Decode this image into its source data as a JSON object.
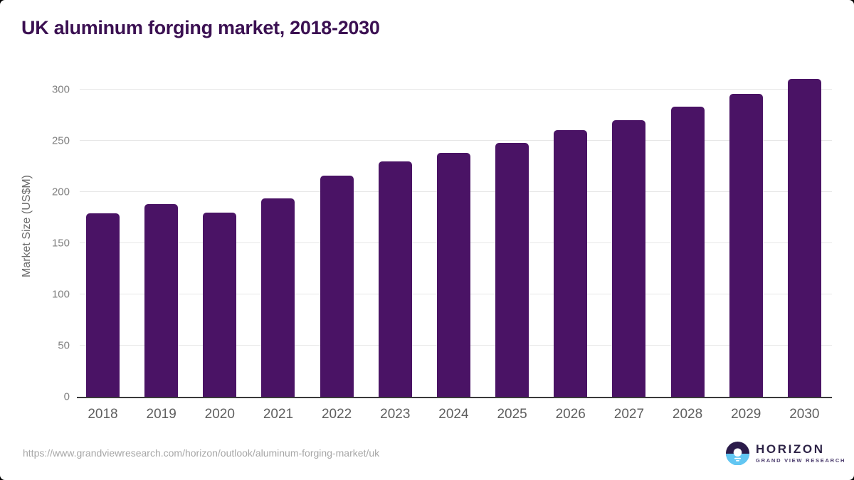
{
  "chart_data": {
    "type": "bar",
    "title": "UK aluminum forging market, 2018-2030",
    "categories": [
      "2018",
      "2019",
      "2020",
      "2021",
      "2022",
      "2023",
      "2024",
      "2025",
      "2026",
      "2027",
      "2028",
      "2029",
      "2030"
    ],
    "values": [
      179,
      188,
      180,
      194,
      216,
      230,
      238,
      248,
      260,
      270,
      283,
      296,
      310
    ],
    "xlabel": "",
    "ylabel": "Market Size (US$M)",
    "ylim": [
      0,
      311
    ],
    "yticks": [
      0,
      50,
      100,
      150,
      200,
      250,
      300
    ],
    "grid": true,
    "legend": false,
    "bar_color": "#4a1365",
    "grid_color": "#e7e7e7",
    "axis_line_color": "#3a3a3a"
  },
  "footer": {
    "source_url": "https://www.grandviewresearch.com/horizon/outlook/aluminum-forging-market/uk",
    "logo": {
      "brand": "HORIZON",
      "sub_brand": "GRAND VIEW RESEARCH",
      "icon": "horizon-sun-icon",
      "icon_colors": {
        "top_half": "#2b1b4a",
        "bottom_half": "#62c6f2",
        "sun": "#ffffff"
      }
    }
  }
}
